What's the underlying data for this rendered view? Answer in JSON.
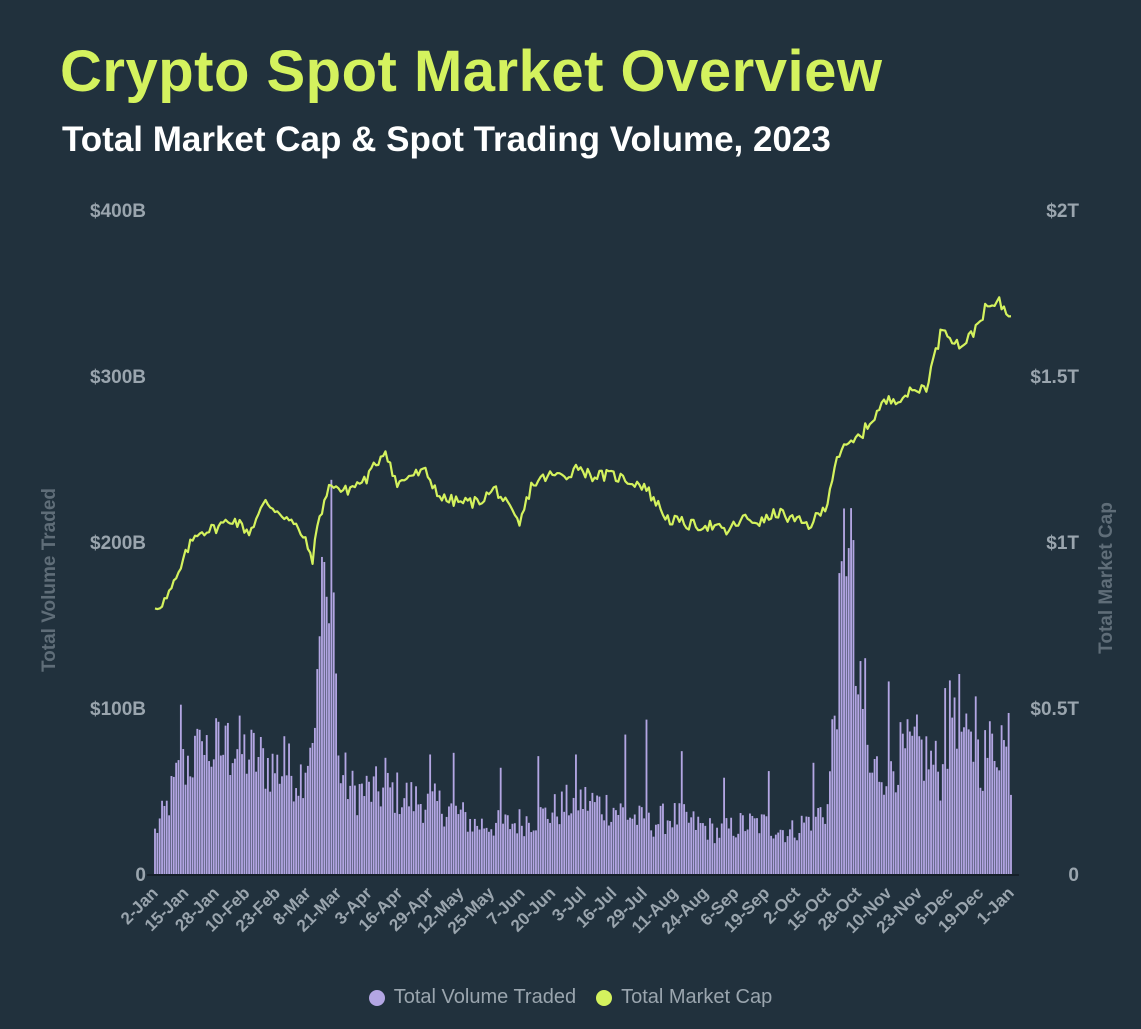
{
  "title": "Crypto Spot Market Overview",
  "subtitle": "Total Market Cap & Spot Trading Volume, 2023",
  "legend": {
    "volume_label": "Total Volume Traded",
    "cap_label": "Total Market Cap"
  },
  "colors": {
    "background": "#21313d",
    "title": "#d4f25e",
    "volume": "#b3a6e3",
    "market_cap": "#d4f25e",
    "axis_text": "#9aa5ae",
    "baseline": "#152029"
  },
  "chart_data": {
    "type": "bar+line",
    "title": "Crypto Spot Market Overview",
    "subtitle": "Total Market Cap & Spot Trading Volume, 2023",
    "ylabel_left": "Total Volume Traded",
    "ylabel_right": "Total Market Cap",
    "ylim_left": [
      0,
      400
    ],
    "ylim_right": [
      0,
      2
    ],
    "yticks_left": [
      "0",
      "$100B",
      "$200B",
      "$300B",
      "$400B"
    ],
    "yticks_right": [
      "0",
      "$0.5T",
      "$1T",
      "$1.5T",
      "$2T"
    ],
    "x_tick_labels": [
      "2-Jan",
      "15-Jan",
      "28-Jan",
      "10-Feb",
      "23-Feb",
      "8-Mar",
      "21-Mar",
      "3-Apr",
      "16-Apr",
      "29-Apr",
      "12-May",
      "25-May",
      "7-Jun",
      "20-Jun",
      "3-Jul",
      "16-Jul",
      "29-Jul",
      "11-Aug",
      "24-Aug",
      "6-Sep",
      "19-Sep",
      "2-Oct",
      "15-Oct",
      "28-Oct",
      "10-Nov",
      "23-Nov",
      "6-Dec",
      "19-Dec",
      "1-Jan"
    ],
    "days": 365,
    "volume_series": {
      "name": "Total Volume Traded",
      "unit": "billions USD",
      "anchors": [
        [
          0,
          25
        ],
        [
          5,
          40
        ],
        [
          10,
          60
        ],
        [
          15,
          70
        ],
        [
          25,
          75
        ],
        [
          35,
          75
        ],
        [
          50,
          65
        ],
        [
          62,
          60
        ],
        [
          66,
          80
        ],
        [
          70,
          140
        ],
        [
          75,
          230
        ],
        [
          78,
          65
        ],
        [
          84,
          50
        ],
        [
          100,
          50
        ],
        [
          110,
          45
        ],
        [
          125,
          40
        ],
        [
          136,
          30
        ],
        [
          150,
          30
        ],
        [
          165,
          35
        ],
        [
          180,
          45
        ],
        [
          195,
          40
        ],
        [
          210,
          30
        ],
        [
          220,
          35
        ],
        [
          230,
          30
        ],
        [
          240,
          25
        ],
        [
          250,
          30
        ],
        [
          260,
          30
        ],
        [
          270,
          25
        ],
        [
          280,
          35
        ],
        [
          286,
          40
        ],
        [
          292,
          160
        ],
        [
          295,
          240
        ],
        [
          298,
          120
        ],
        [
          304,
          60
        ],
        [
          315,
          70
        ],
        [
          325,
          75
        ],
        [
          335,
          60
        ],
        [
          340,
          110
        ],
        [
          345,
          75
        ],
        [
          352,
          70
        ],
        [
          360,
          85
        ],
        [
          364,
          55
        ]
      ],
      "spikes": [
        [
          11,
          102
        ],
        [
          20,
          80
        ],
        [
          31,
          91
        ],
        [
          42,
          85
        ],
        [
          55,
          83
        ],
        [
          68,
          88
        ],
        [
          73,
          167
        ],
        [
          98,
          70
        ],
        [
          117,
          72
        ],
        [
          127,
          73
        ],
        [
          147,
          64
        ],
        [
          163,
          71
        ],
        [
          179,
          72
        ],
        [
          200,
          84
        ],
        [
          209,
          93
        ],
        [
          224,
          74
        ],
        [
          242,
          58
        ],
        [
          261,
          62
        ],
        [
          280,
          67
        ],
        [
          302,
          130
        ],
        [
          312,
          116
        ],
        [
          325,
          83
        ],
        [
          336,
          112
        ],
        [
          349,
          107
        ],
        [
          363,
          97
        ]
      ]
    },
    "market_cap_series": {
      "name": "Total Market Cap",
      "unit": "trillions USD",
      "points": [
        [
          0,
          0.8
        ],
        [
          5,
          0.83
        ],
        [
          10,
          0.9
        ],
        [
          14,
          0.98
        ],
        [
          18,
          1.03
        ],
        [
          25,
          1.04
        ],
        [
          33,
          1.07
        ],
        [
          40,
          1.03
        ],
        [
          47,
          1.12
        ],
        [
          55,
          1.08
        ],
        [
          62,
          1.03
        ],
        [
          67,
          0.95
        ],
        [
          70,
          1.08
        ],
        [
          75,
          1.18
        ],
        [
          80,
          1.15
        ],
        [
          90,
          1.19
        ],
        [
          98,
          1.28
        ],
        [
          103,
          1.17
        ],
        [
          108,
          1.2
        ],
        [
          115,
          1.21
        ],
        [
          122,
          1.13
        ],
        [
          130,
          1.12
        ],
        [
          137,
          1.12
        ],
        [
          145,
          1.16
        ],
        [
          155,
          1.05
        ],
        [
          160,
          1.17
        ],
        [
          167,
          1.2
        ],
        [
          175,
          1.2
        ],
        [
          180,
          1.23
        ],
        [
          185,
          1.2
        ],
        [
          195,
          1.2
        ],
        [
          208,
          1.17
        ],
        [
          218,
          1.07
        ],
        [
          228,
          1.05
        ],
        [
          236,
          1.05
        ],
        [
          243,
          1.03
        ],
        [
          250,
          1.07
        ],
        [
          258,
          1.06
        ],
        [
          265,
          1.09
        ],
        [
          270,
          1.07
        ],
        [
          278,
          1.05
        ],
        [
          285,
          1.1
        ],
        [
          290,
          1.26
        ],
        [
          300,
          1.32
        ],
        [
          310,
          1.42
        ],
        [
          318,
          1.44
        ],
        [
          328,
          1.47
        ],
        [
          335,
          1.65
        ],
        [
          342,
          1.59
        ],
        [
          347,
          1.62
        ],
        [
          353,
          1.7
        ],
        [
          359,
          1.72
        ],
        [
          364,
          1.68
        ]
      ]
    }
  }
}
